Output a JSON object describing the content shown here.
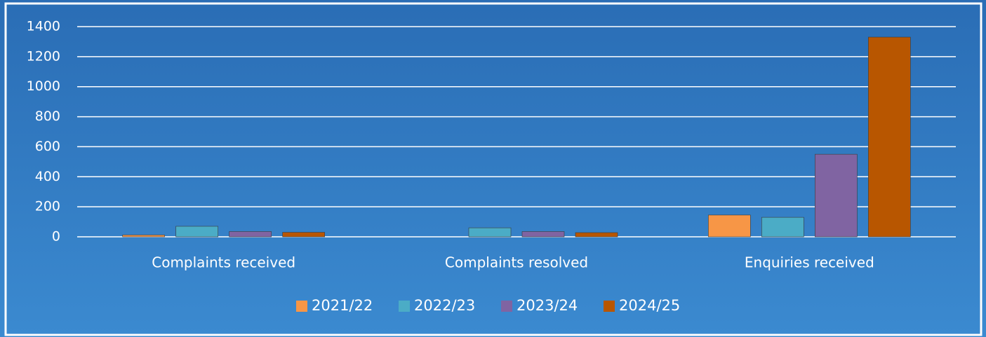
{
  "chart_data": {
    "type": "bar",
    "categories": [
      "Complaints received",
      "Complaints resolved",
      "Enquiries received"
    ],
    "series": [
      {
        "name": "2021/22",
        "color": "#f79646",
        "values": [
          12,
          0,
          145
        ]
      },
      {
        "name": "2022/23",
        "color": "#4bacc6",
        "values": [
          70,
          60,
          130
        ]
      },
      {
        "name": "2023/24",
        "color": "#8064a2",
        "values": [
          35,
          35,
          550
        ]
      },
      {
        "name": "2024/25",
        "color": "#b85600",
        "values": [
          30,
          28,
          1330
        ]
      }
    ],
    "ylim": [
      0,
      1400
    ],
    "yticks": [
      0,
      200,
      400,
      600,
      800,
      1000,
      1200,
      1400
    ],
    "grid": true,
    "legend": "bottom"
  }
}
